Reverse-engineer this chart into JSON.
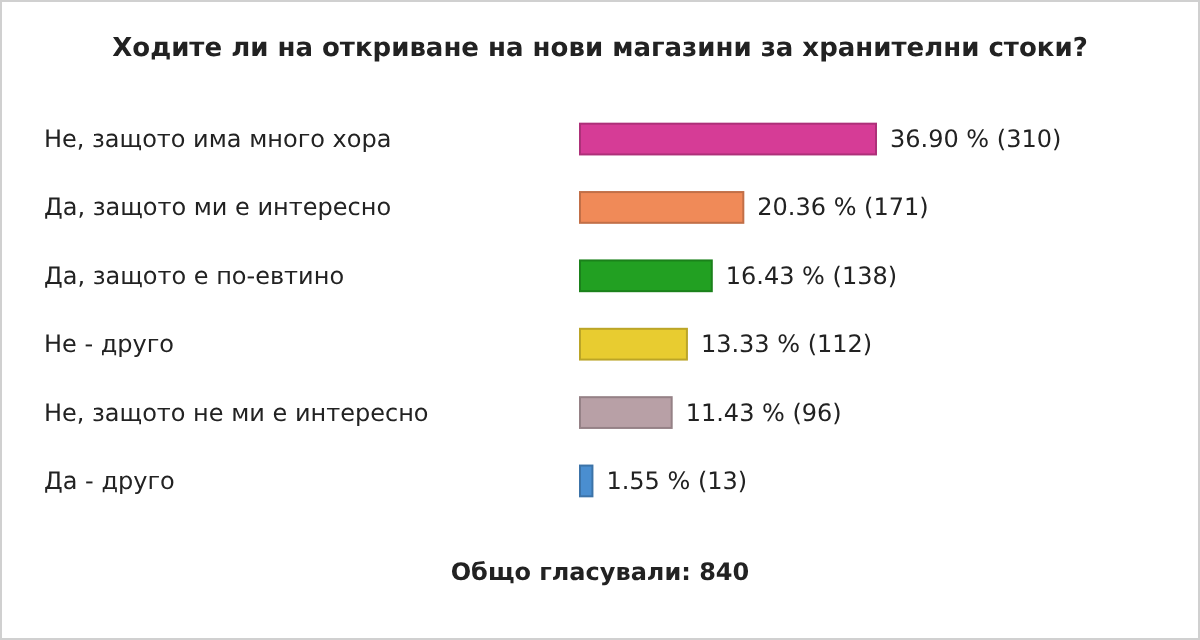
{
  "chart_data": {
    "type": "bar",
    "orientation": "horizontal",
    "title": "Ходите ли на откриване на нови магазини за хранителни стоки?",
    "categories": [
      "Не, защото има много хора",
      "Да, защото ми е интересно",
      "Да, защото е по-евтино",
      "Не - друго",
      "Не, защото не ми е интересно",
      "Да - друго"
    ],
    "values": [
      36.9,
      20.36,
      16.43,
      13.33,
      11.43,
      1.55
    ],
    "colors": [
      "#d63c96",
      "#f08a58",
      "#22a022",
      "#e8cc30",
      "#b8a0a6",
      "#4a8ed0"
    ],
    "value_labels": [
      "36.90 % (310)",
      "20.36 % (171)",
      "16.43 % (138)",
      "13.33 % (112)",
      "11.43 % (96)",
      "1.55 % (13)"
    ],
    "annotations": [
      "Общо гласували: 840"
    ]
  }
}
